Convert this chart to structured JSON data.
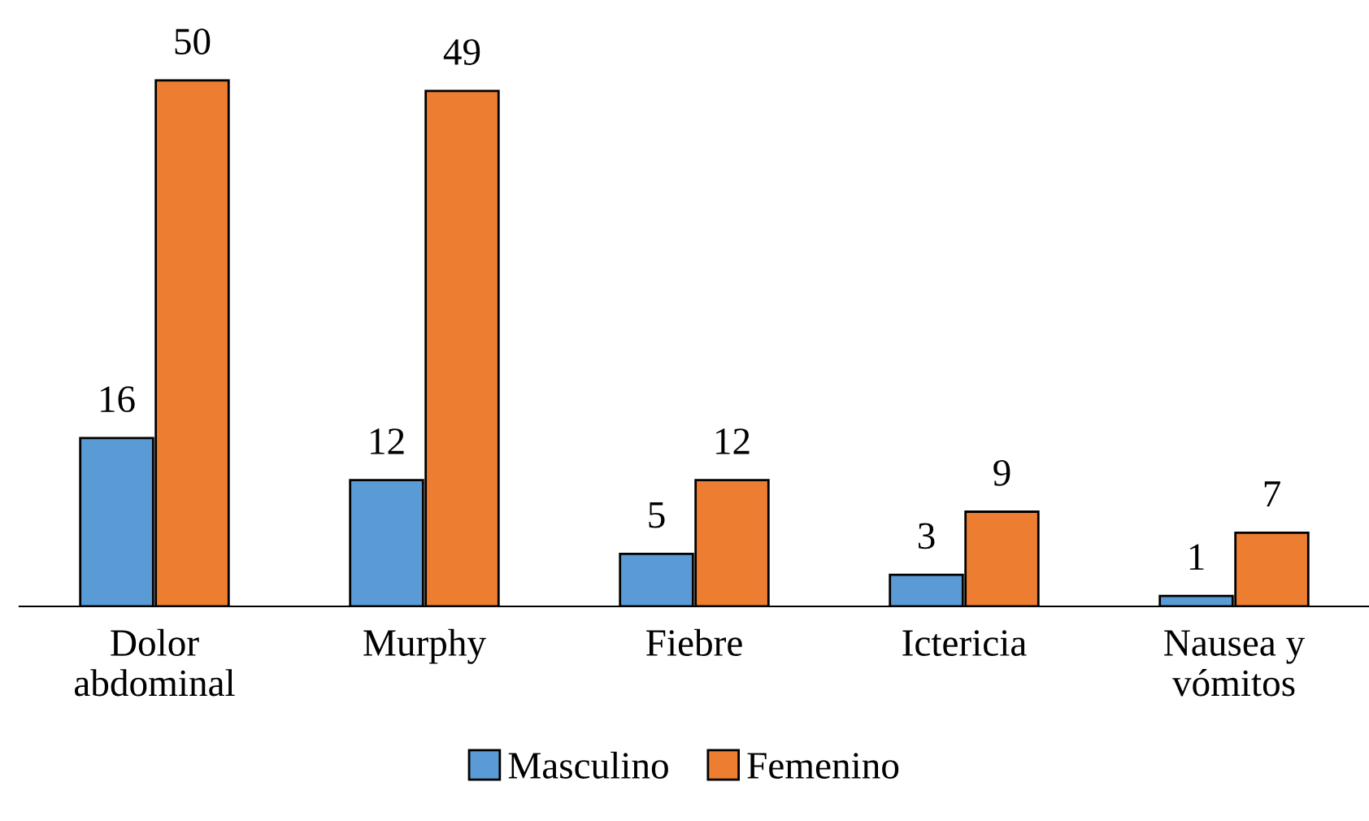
{
  "chart_data": {
    "type": "bar",
    "categories": [
      "Dolor\nabdominal",
      "Murphy",
      "Fiebre",
      "Ictericia",
      "Nausea y\nvómitos"
    ],
    "series": [
      {
        "name": "Masculino",
        "color": "#5b9bd5",
        "values": [
          16,
          12,
          5,
          3,
          1
        ]
      },
      {
        "name": "Femenino",
        "color": "#ed7d31",
        "values": [
          50,
          49,
          12,
          9,
          7
        ]
      }
    ],
    "data_labels": true,
    "legend": "bottom",
    "grid": false
  }
}
